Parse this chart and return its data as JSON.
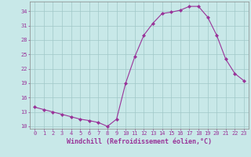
{
  "x": [
    0,
    1,
    2,
    3,
    4,
    5,
    6,
    7,
    8,
    9,
    10,
    11,
    12,
    13,
    14,
    15,
    16,
    17,
    18,
    19,
    20,
    21,
    22,
    23
  ],
  "y": [
    14.0,
    13.5,
    13.0,
    12.5,
    12.0,
    11.5,
    11.2,
    10.8,
    10.0,
    11.5,
    19.0,
    24.5,
    29.0,
    31.5,
    33.5,
    33.8,
    34.2,
    35.0,
    35.0,
    32.8,
    29.0,
    24.0,
    21.0,
    19.5
  ],
  "line_color": "#993399",
  "marker": "D",
  "marker_size": 2.0,
  "bg_color": "#c8e8e8",
  "grid_color": "#a0c8c8",
  "xlabel": "Windchill (Refroidissement éolien,°C)",
  "ylim": [
    9.5,
    36
  ],
  "yticks": [
    10,
    13,
    16,
    19,
    22,
    25,
    28,
    31,
    34
  ],
  "xticks": [
    0,
    1,
    2,
    3,
    4,
    5,
    6,
    7,
    8,
    9,
    10,
    11,
    12,
    13,
    14,
    15,
    16,
    17,
    18,
    19,
    20,
    21,
    22,
    23
  ],
  "tick_color": "#993399",
  "tick_fontsize": 5.0,
  "xlabel_fontsize": 6.0,
  "spine_color": "#888888",
  "linewidth": 0.8
}
